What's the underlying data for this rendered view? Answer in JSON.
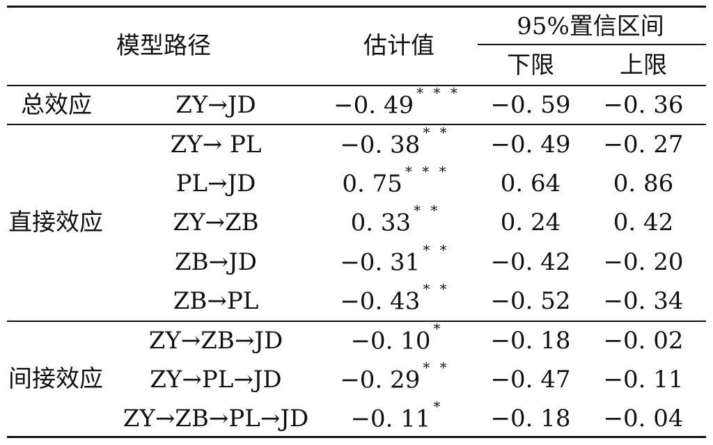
{
  "table": {
    "header": {
      "path": "模型路径",
      "estimate": "估计值",
      "ci": "95%置信区间",
      "lower": "下限",
      "upper": "上限"
    },
    "groups": [
      {
        "label": "总效应"
      },
      {
        "label": "直接效应"
      },
      {
        "label": "间接效应"
      }
    ],
    "rows": [
      {
        "path": "ZY→JD",
        "est": "−0. 49",
        "sig": "* * *",
        "lower": "−0. 59",
        "upper": "−0. 36"
      },
      {
        "path": "ZY→ PL",
        "est": "−0. 38",
        "sig": "* *",
        "lower": "−0. 49",
        "upper": "−0. 27"
      },
      {
        "path": "PL→JD",
        "est": "0. 75",
        "sig": "* * *",
        "lower": "0. 64",
        "upper": "0. 86"
      },
      {
        "path": "ZY→ZB",
        "est": "0. 33",
        "sig": "* *",
        "lower": "0. 24",
        "upper": "0. 42"
      },
      {
        "path": "ZB→JD",
        "est": "−0. 31",
        "sig": "* *",
        "lower": "−0. 42",
        "upper": "−0. 20"
      },
      {
        "path": "ZB→PL",
        "est": "−0. 43",
        "sig": "* *",
        "lower": "−0. 52",
        "upper": "−0. 34"
      },
      {
        "path": "ZY→ZB→JD",
        "est": "−0. 10",
        "sig": "*",
        "lower": "−0. 18",
        "upper": "−0. 02"
      },
      {
        "path": "ZY→PL→JD",
        "est": "−0. 29",
        "sig": "* *",
        "lower": "−0. 47",
        "upper": "−0. 11"
      },
      {
        "path": "ZY→ZB→PL→JD",
        "est": "−0. 11",
        "sig": "*",
        "lower": "−0. 18",
        "upper": "−0. 04"
      }
    ]
  }
}
